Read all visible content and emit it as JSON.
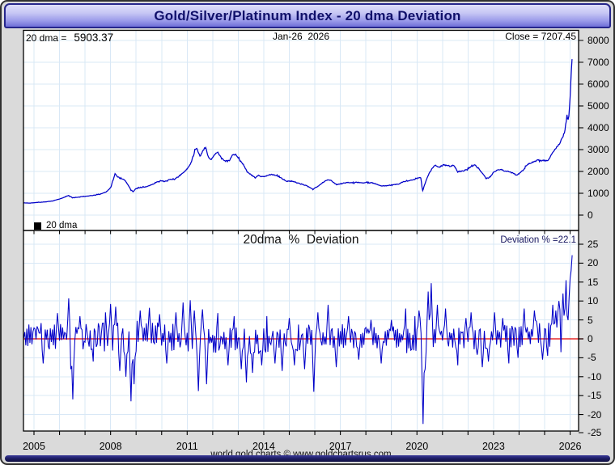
{
  "window": {
    "title": "Gold/Silver/Platinum Index - 20 dma Deviation"
  },
  "top_panel": {
    "dma_prefix": "20 dma =",
    "dma_value": "5903.37",
    "date_label": "Jan-26  2026",
    "close_label": "Close = 7207.45",
    "legend_label": "20 dma"
  },
  "bottom_panel": {
    "title": "20dma  %  Deviation",
    "deviation_label": "Deviation % =22.1"
  },
  "footer": {
    "credit": "world gold charts © www.goldchartsrus.com"
  },
  "colors": {
    "line": "#0000c8",
    "zero_line": "#e00000",
    "grid": "#d9e8f6",
    "panel_bg": "#ffffff",
    "frame_bg": "#dadada",
    "panel_border": "#000000",
    "header_text": "#10106a"
  },
  "chart_data": [
    {
      "type": "line",
      "panel": "price",
      "series_name": "20 dma",
      "x_range": [
        2004.6,
        2026.08
      ],
      "x_tick_year_start": 2005,
      "x_tick_year_end": 2026,
      "x_tick_labels": [
        {
          "year": 2005,
          "label": "2005"
        },
        {
          "year": 2008,
          "label": "2008"
        },
        {
          "year": 2011,
          "label": "2011"
        },
        {
          "year": 2014,
          "label": "2014"
        },
        {
          "year": 2017,
          "label": "2017"
        },
        {
          "year": 2020,
          "label": "2020"
        },
        {
          "year": 2023,
          "label": "2023"
        },
        {
          "year": 2026,
          "label": "2026"
        }
      ],
      "y_ticks": [
        8000,
        7000,
        6000,
        5000,
        4000,
        3000,
        2000,
        1000,
        0
      ],
      "ylim": [
        0,
        8450
      ],
      "last_close": 7207.45,
      "last_20dma": 5903.37,
      "anchors": [
        [
          2004.6,
          560
        ],
        [
          2004.85,
          550
        ],
        [
          2005.1,
          580
        ],
        [
          2005.4,
          600
        ],
        [
          2005.7,
          640
        ],
        [
          2005.95,
          720
        ],
        [
          2006.15,
          800
        ],
        [
          2006.35,
          900
        ],
        [
          2006.5,
          800
        ],
        [
          2006.7,
          820
        ],
        [
          2006.9,
          850
        ],
        [
          2007.1,
          870
        ],
        [
          2007.35,
          910
        ],
        [
          2007.6,
          960
        ],
        [
          2007.85,
          1080
        ],
        [
          2008.0,
          1250
        ],
        [
          2008.18,
          1900
        ],
        [
          2008.28,
          1750
        ],
        [
          2008.4,
          1680
        ],
        [
          2008.55,
          1600
        ],
        [
          2008.68,
          1400
        ],
        [
          2008.8,
          1150
        ],
        [
          2008.88,
          1070
        ],
        [
          2009.0,
          1220
        ],
        [
          2009.2,
          1280
        ],
        [
          2009.4,
          1300
        ],
        [
          2009.6,
          1380
        ],
        [
          2009.8,
          1500
        ],
        [
          2009.95,
          1580
        ],
        [
          2010.1,
          1540
        ],
        [
          2010.3,
          1620
        ],
        [
          2010.5,
          1650
        ],
        [
          2010.65,
          1750
        ],
        [
          2010.85,
          1950
        ],
        [
          2011.0,
          2120
        ],
        [
          2011.15,
          2400
        ],
        [
          2011.3,
          2950
        ],
        [
          2011.38,
          3080
        ],
        [
          2011.5,
          2680
        ],
        [
          2011.62,
          2950
        ],
        [
          2011.72,
          3120
        ],
        [
          2011.82,
          2700
        ],
        [
          2011.92,
          2520
        ],
        [
          2012.05,
          2750
        ],
        [
          2012.2,
          2870
        ],
        [
          2012.35,
          2600
        ],
        [
          2012.5,
          2480
        ],
        [
          2012.65,
          2500
        ],
        [
          2012.8,
          2780
        ],
        [
          2012.9,
          2760
        ],
        [
          2013.05,
          2550
        ],
        [
          2013.2,
          2300
        ],
        [
          2013.35,
          1980
        ],
        [
          2013.5,
          1850
        ],
        [
          2013.65,
          1720
        ],
        [
          2013.8,
          1820
        ],
        [
          2013.95,
          1750
        ],
        [
          2014.1,
          1800
        ],
        [
          2014.3,
          1870
        ],
        [
          2014.5,
          1820
        ],
        [
          2014.7,
          1680
        ],
        [
          2014.9,
          1550
        ],
        [
          2015.1,
          1560
        ],
        [
          2015.3,
          1480
        ],
        [
          2015.5,
          1420
        ],
        [
          2015.7,
          1330
        ],
        [
          2015.92,
          1180
        ],
        [
          2016.1,
          1300
        ],
        [
          2016.3,
          1480
        ],
        [
          2016.5,
          1620
        ],
        [
          2016.65,
          1580
        ],
        [
          2016.85,
          1390
        ],
        [
          2017.05,
          1440
        ],
        [
          2017.25,
          1510
        ],
        [
          2017.45,
          1470
        ],
        [
          2017.65,
          1500
        ],
        [
          2017.85,
          1470
        ],
        [
          2018.05,
          1500
        ],
        [
          2018.25,
          1480
        ],
        [
          2018.45,
          1400
        ],
        [
          2018.65,
          1330
        ],
        [
          2018.85,
          1360
        ],
        [
          2019.05,
          1390
        ],
        [
          2019.25,
          1410
        ],
        [
          2019.45,
          1520
        ],
        [
          2019.65,
          1570
        ],
        [
          2019.85,
          1620
        ],
        [
          2020.0,
          1680
        ],
        [
          2020.15,
          1720
        ],
        [
          2020.22,
          1080
        ],
        [
          2020.32,
          1480
        ],
        [
          2020.45,
          1850
        ],
        [
          2020.6,
          2150
        ],
        [
          2020.72,
          2300
        ],
        [
          2020.85,
          2180
        ],
        [
          2021.0,
          2280
        ],
        [
          2021.12,
          2320
        ],
        [
          2021.3,
          2230
        ],
        [
          2021.45,
          2280
        ],
        [
          2021.6,
          1980
        ],
        [
          2021.8,
          2020
        ],
        [
          2021.95,
          2080
        ],
        [
          2022.1,
          2200
        ],
        [
          2022.25,
          2300
        ],
        [
          2022.4,
          2150
        ],
        [
          2022.55,
          1950
        ],
        [
          2022.7,
          1680
        ],
        [
          2022.85,
          1720
        ],
        [
          2023.0,
          1950
        ],
        [
          2023.15,
          2060
        ],
        [
          2023.3,
          2080
        ],
        [
          2023.45,
          2020
        ],
        [
          2023.6,
          1990
        ],
        [
          2023.75,
          1930
        ],
        [
          2023.9,
          1830
        ],
        [
          2024.0,
          1900
        ],
        [
          2024.15,
          2050
        ],
        [
          2024.3,
          2280
        ],
        [
          2024.45,
          2380
        ],
        [
          2024.6,
          2460
        ],
        [
          2024.75,
          2520
        ],
        [
          2024.9,
          2480
        ],
        [
          2025.0,
          2520
        ],
        [
          2025.1,
          2470
        ],
        [
          2025.22,
          2680
        ],
        [
          2025.35,
          2920
        ],
        [
          2025.5,
          3120
        ],
        [
          2025.6,
          3320
        ],
        [
          2025.7,
          3550
        ],
        [
          2025.78,
          3800
        ],
        [
          2025.84,
          4250
        ],
        [
          2025.88,
          4600
        ],
        [
          2025.91,
          4300
        ],
        [
          2025.94,
          4450
        ],
        [
          2025.97,
          4800
        ],
        [
          2026.0,
          5400
        ],
        [
          2026.02,
          5900
        ],
        [
          2026.04,
          6500
        ],
        [
          2026.06,
          6900
        ],
        [
          2026.08,
          7207
        ]
      ],
      "noise": {
        "seed": 11,
        "rel_amp": 0.011,
        "min_amp": 4,
        "step_years": 0.025
      }
    },
    {
      "type": "line",
      "panel": "deviation",
      "title": "20dma % Deviation",
      "x_range": [
        2004.6,
        2026.08
      ],
      "y_ticks": [
        25,
        20,
        15,
        10,
        5,
        0,
        -5,
        -10,
        -15,
        -20,
        -25
      ],
      "ylim": [
        -25,
        25
      ],
      "zero_line": 0,
      "last_value": 22.1,
      "mean_anchors": [
        [
          2004.6,
          0.8
        ],
        [
          2008.3,
          0.2
        ],
        [
          2009.0,
          0.8
        ],
        [
          2011.5,
          -0.2
        ],
        [
          2013.0,
          -0.5
        ],
        [
          2016.2,
          0.0
        ],
        [
          2019.3,
          0.5
        ],
        [
          2020.0,
          0.0
        ],
        [
          2020.6,
          0.8
        ],
        [
          2022.0,
          0.0
        ],
        [
          2024.0,
          0.8
        ],
        [
          2025.3,
          2.0
        ],
        [
          2025.8,
          4.0
        ],
        [
          2026.08,
          6.0
        ]
      ],
      "amplitude_anchors": [
        [
          2004.6,
          2.6
        ],
        [
          2006.0,
          3.4
        ],
        [
          2008.0,
          4.2
        ],
        [
          2012.0,
          3.6
        ],
        [
          2016.5,
          3.0
        ],
        [
          2019.5,
          2.8
        ],
        [
          2020.0,
          4.0
        ],
        [
          2021.0,
          3.0
        ],
        [
          2024.5,
          3.4
        ],
        [
          2025.5,
          4.6
        ],
        [
          2026.08,
          5.0
        ]
      ],
      "spikes": [
        [
          2005.35,
          -6.5
        ],
        [
          2005.9,
          6.8
        ],
        [
          2006.35,
          10.7
        ],
        [
          2006.42,
          -8
        ],
        [
          2006.5,
          -16
        ],
        [
          2006.8,
          6
        ],
        [
          2007.3,
          -6
        ],
        [
          2007.8,
          7
        ],
        [
          2008.0,
          9.2
        ],
        [
          2008.2,
          8.5
        ],
        [
          2008.35,
          -8.5
        ],
        [
          2008.6,
          -10
        ],
        [
          2008.8,
          -16.5
        ],
        [
          2008.92,
          -12
        ],
        [
          2009.15,
          7.5
        ],
        [
          2009.5,
          8.2
        ],
        [
          2009.9,
          6.5
        ],
        [
          2010.2,
          -6.5
        ],
        [
          2010.55,
          7
        ],
        [
          2010.85,
          9.6
        ],
        [
          2011.1,
          10.2
        ],
        [
          2011.28,
          7.5
        ],
        [
          2011.45,
          -13.8
        ],
        [
          2011.58,
          7.8
        ],
        [
          2011.75,
          -12
        ],
        [
          2012.2,
          6.8
        ],
        [
          2012.6,
          -7
        ],
        [
          2012.85,
          6
        ],
        [
          2013.1,
          -8
        ],
        [
          2013.3,
          -11.5
        ],
        [
          2013.55,
          -9
        ],
        [
          2013.9,
          -7
        ],
        [
          2014.1,
          6
        ],
        [
          2014.45,
          -6.5
        ],
        [
          2014.7,
          -8.5
        ],
        [
          2015.0,
          5.5
        ],
        [
          2015.2,
          -7
        ],
        [
          2015.6,
          -8
        ],
        [
          2015.95,
          -14
        ],
        [
          2016.1,
          7
        ],
        [
          2016.5,
          9
        ],
        [
          2016.85,
          -7.5
        ],
        [
          2017.3,
          6
        ],
        [
          2017.7,
          -5.5
        ],
        [
          2018.2,
          5
        ],
        [
          2018.6,
          -6.5
        ],
        [
          2019.0,
          5
        ],
        [
          2019.55,
          8
        ],
        [
          2019.9,
          6
        ],
        [
          2020.08,
          7.5
        ],
        [
          2020.22,
          -22.5
        ],
        [
          2020.3,
          -8
        ],
        [
          2020.45,
          12.5
        ],
        [
          2020.56,
          14.7
        ],
        [
          2020.8,
          9
        ],
        [
          2021.1,
          8
        ],
        [
          2021.6,
          -7
        ],
        [
          2021.9,
          5.5
        ],
        [
          2022.1,
          7
        ],
        [
          2022.55,
          -7.5
        ],
        [
          2022.8,
          -6
        ],
        [
          2023.05,
          7
        ],
        [
          2023.35,
          5.5
        ],
        [
          2023.6,
          -6.5
        ],
        [
          2023.95,
          -5
        ],
        [
          2024.2,
          8
        ],
        [
          2024.6,
          7.5
        ],
        [
          2024.9,
          -5.5
        ],
        [
          2025.1,
          -4.5
        ],
        [
          2025.3,
          9
        ],
        [
          2025.45,
          7.5
        ],
        [
          2025.55,
          10
        ],
        [
          2025.7,
          12
        ],
        [
          2025.8,
          8
        ],
        [
          2025.85,
          15.5
        ],
        [
          2025.9,
          -4.5
        ],
        [
          2025.95,
          11
        ],
        [
          2026.0,
          16
        ],
        [
          2026.04,
          18
        ],
        [
          2026.08,
          22.1
        ]
      ],
      "noise": {
        "seed": 23,
        "flip_prob": 0.75,
        "step_years": 0.04
      }
    }
  ]
}
